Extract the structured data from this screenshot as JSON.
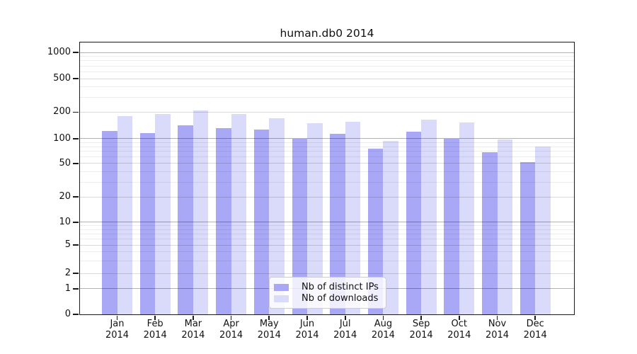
{
  "chart_data": {
    "type": "bar",
    "title": "human.db0 2014",
    "categories": [
      "Jan 2014",
      "Feb 2014",
      "Mar 2014",
      "Apr 2014",
      "May 2014",
      "Jun 2014",
      "Jul 2014",
      "Aug 2014",
      "Sep 2014",
      "Oct 2014",
      "Nov 2014",
      "Dec 2014"
    ],
    "series": [
      {
        "name": "Nb of distinct IPs",
        "color": "#a8a8f6",
        "values": [
          122,
          116,
          143,
          132,
          126,
          100,
          113,
          76,
          121,
          100,
          68,
          52
        ]
      },
      {
        "name": "Nb of downloads",
        "color": "#dadafa",
        "values": [
          180,
          190,
          208,
          192,
          170,
          150,
          157,
          94,
          165,
          152,
          97,
          81
        ]
      }
    ],
    "y_axis": {
      "scale": "symlog",
      "tick_labels": [
        "0",
        "1",
        "2",
        "5",
        "10",
        "20",
        "50",
        "100",
        "200",
        "500",
        "1000"
      ]
    },
    "legend": {
      "position": "bottom-center"
    },
    "grid": "on",
    "colors": {
      "axis": "#1a1a1a",
      "background": "#ffffff"
    }
  }
}
